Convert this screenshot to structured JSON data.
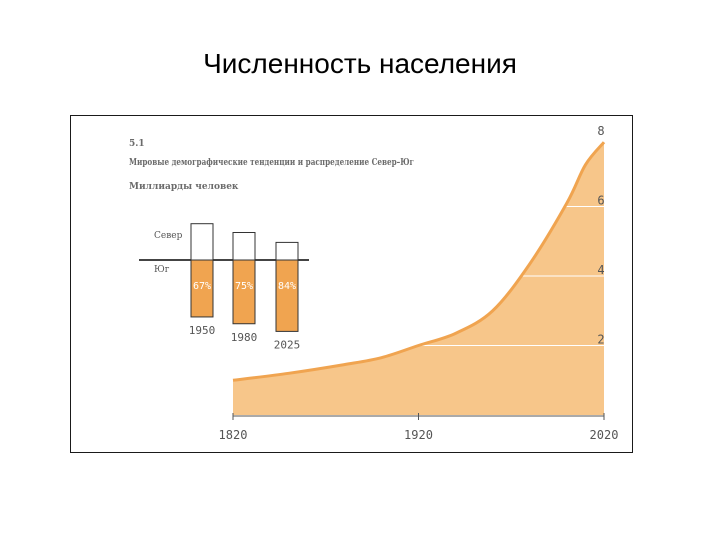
{
  "slide": {
    "title": "Численность населения"
  },
  "chart_data": [
    {
      "type": "area",
      "header": {
        "number": "5.1",
        "title": "Мировые демографические тенденции и распределение Север–Юг",
        "unit": "Миллиарды человек"
      },
      "x": [
        1820,
        1850,
        1880,
        1900,
        1920,
        1940,
        1960,
        1980,
        2000,
        2010,
        2020
      ],
      "y": [
        1.0,
        1.2,
        1.45,
        1.65,
        2.0,
        2.35,
        3.0,
        4.35,
        6.1,
        7.2,
        7.85
      ],
      "xticks": [
        "1820",
        "1920",
        "2020"
      ],
      "yticks": [
        "2",
        "4",
        "6",
        "8"
      ],
      "xlim": [
        1820,
        2020
      ],
      "ylim": [
        0,
        8
      ],
      "grid": true,
      "colors": {
        "fill": "#f7c68a",
        "edge": "#f0a450",
        "grid": "#ffffff"
      }
    },
    {
      "type": "bar",
      "group_labels": {
        "north": "Север",
        "south": "Юг"
      },
      "categories": [
        "1950",
        "1980",
        "2025"
      ],
      "pct_labels": [
        "67%",
        "75%",
        "84%"
      ],
      "series": [
        {
          "name": "Север",
          "values": [
            0.33,
            0.25,
            0.16
          ]
        },
        {
          "name": "Юг",
          "values": [
            0.67,
            0.75,
            0.84
          ]
        }
      ],
      "colors": {
        "south": "#f0a450",
        "north": "#ffffff",
        "stroke": "#333333"
      }
    }
  ]
}
